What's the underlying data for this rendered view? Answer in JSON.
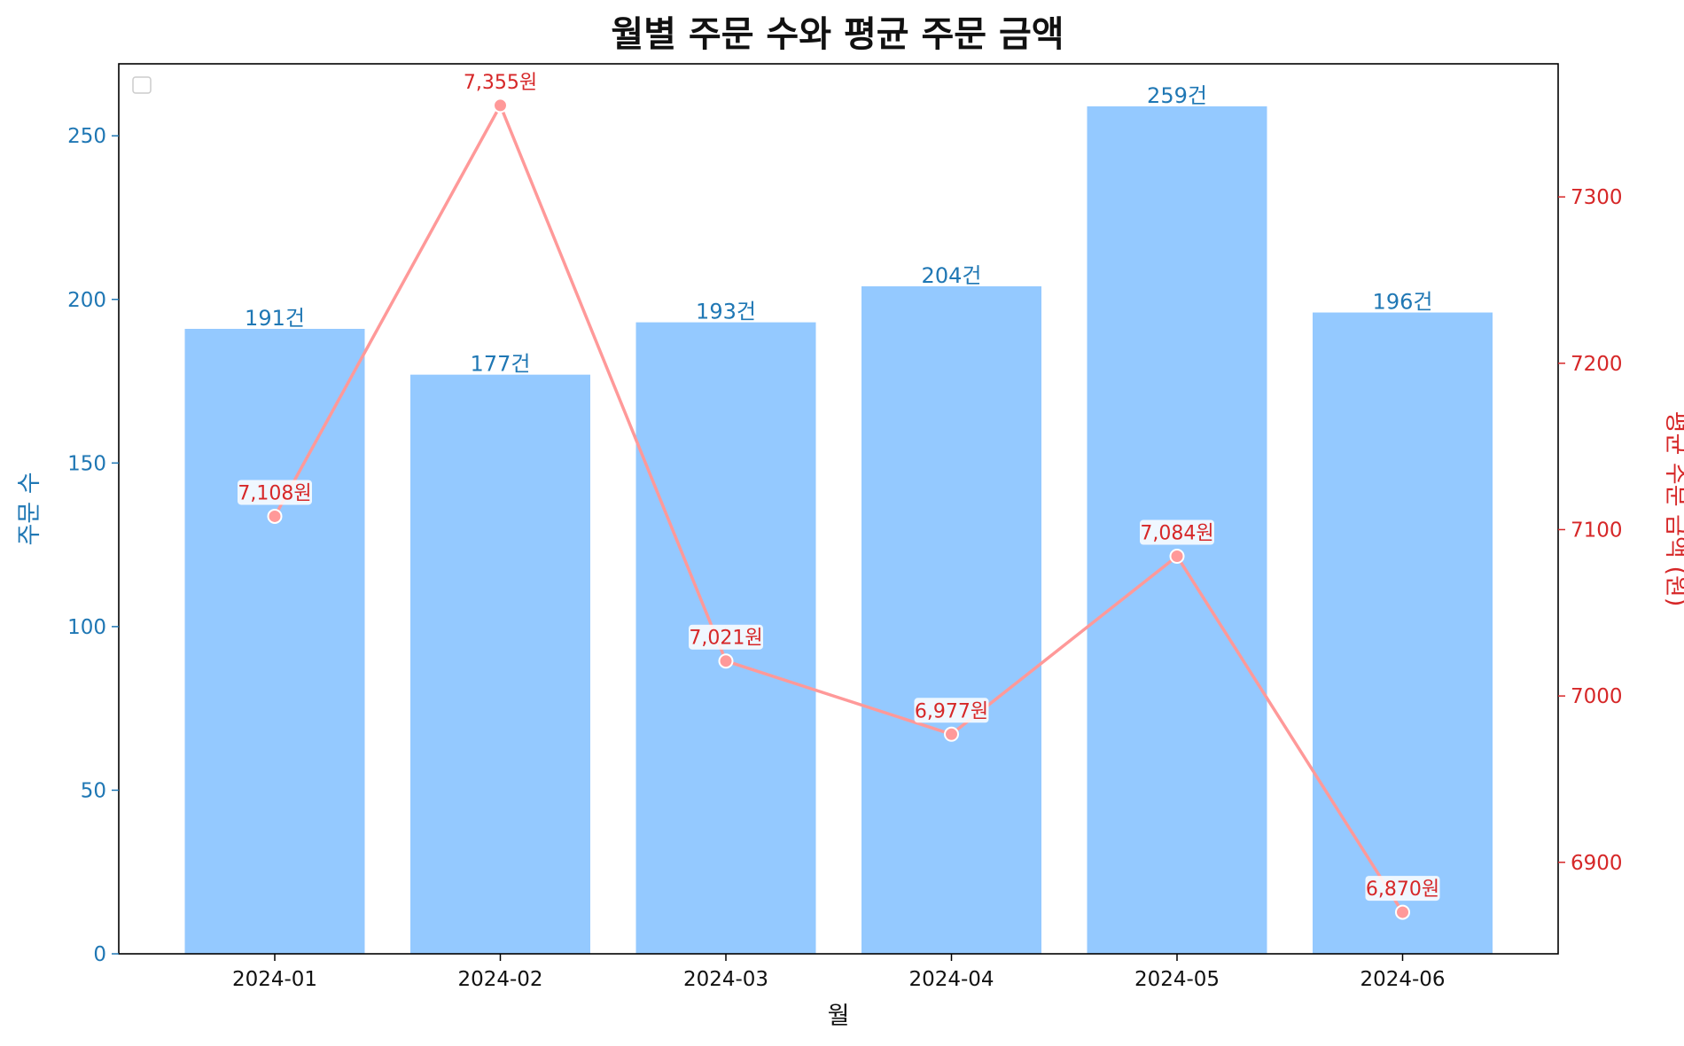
{
  "chart_data": {
    "type": "bar+line",
    "title": "월별 주문 수와 평균 주문 금액",
    "xlabel": "월",
    "categories": [
      "2024-01",
      "2024-02",
      "2024-03",
      "2024-04",
      "2024-05",
      "2024-06"
    ],
    "bar_series": {
      "name": "주문 수",
      "ylabel": "주문 수",
      "values": [
        191,
        177,
        193,
        204,
        259,
        196
      ],
      "labels": [
        "191건",
        "177건",
        "193건",
        "204건",
        "259건",
        "196건"
      ],
      "ylim": [
        0,
        272
      ],
      "ticks": [
        0,
        50,
        100,
        150,
        200,
        250
      ],
      "tick_labels": [
        "0",
        "50",
        "100",
        "150",
        "200",
        "250"
      ],
      "bar_color": "#94c9ff",
      "axis_color": "#1f77b4"
    },
    "line_series": {
      "name": "평균 주문 금액",
      "ylabel": "평균 주문 금액 (원)",
      "values": [
        7108,
        7355,
        7021,
        6977,
        7084,
        6870
      ],
      "labels": [
        "7,108원",
        "7,355원",
        "7,021원",
        "6,977원",
        "7,084원",
        "6,870원"
      ],
      "ylim": [
        6845,
        7380
      ],
      "ticks": [
        6900,
        7000,
        7100,
        7200,
        7300
      ],
      "tick_labels": [
        "6900",
        "7000",
        "7100",
        "7200",
        "7300"
      ],
      "line_color": "#ff9999",
      "axis_color": "#d62728"
    },
    "legend": "top-left (empty)",
    "grid": false
  }
}
